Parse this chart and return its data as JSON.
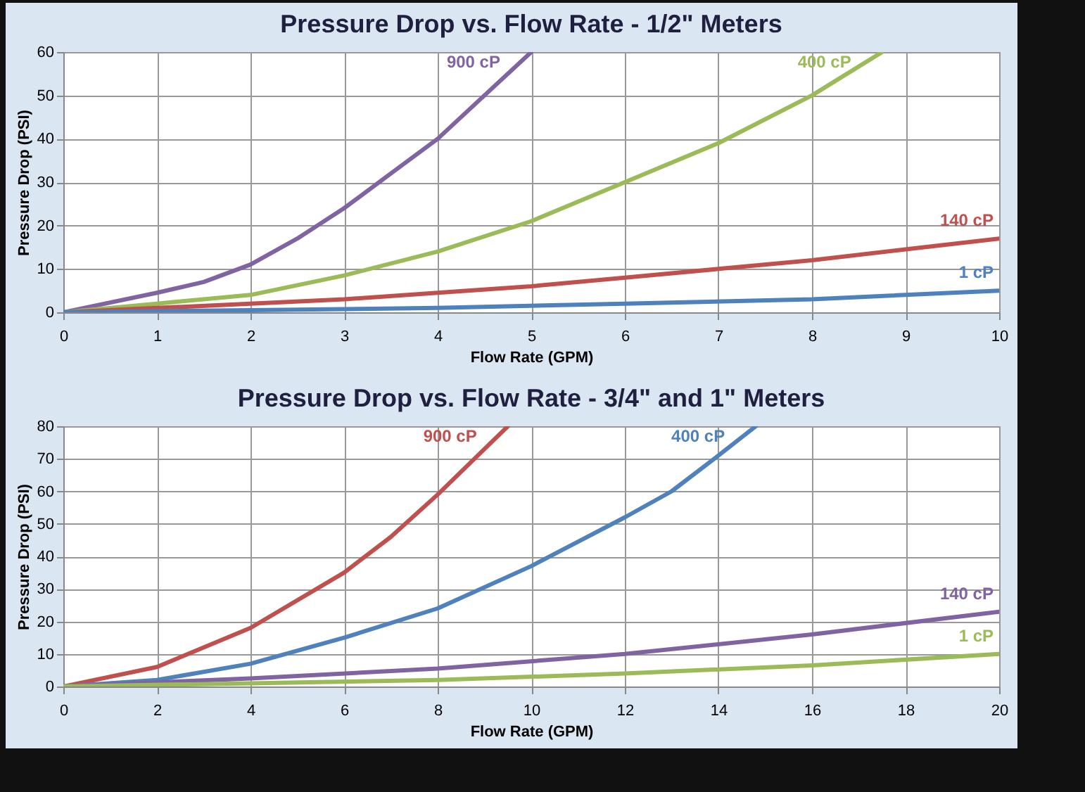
{
  "chart_data": [
    {
      "type": "line",
      "title": "Pressure Drop  vs. Flow Rate - 1/2\" Meters",
      "xlabel": "Flow Rate (GPM)",
      "ylabel": "Pressure Drop (PSI)",
      "xlim": [
        0,
        10
      ],
      "ylim": [
        0,
        60
      ],
      "xticks": [
        0,
        1,
        2,
        3,
        4,
        5,
        6,
        7,
        8,
        9,
        10
      ],
      "yticks": [
        0,
        10,
        20,
        30,
        40,
        50,
        60
      ],
      "grid": true,
      "series": [
        {
          "name": "900 cP",
          "color": "#8064a2",
          "x": [
            0,
            1,
            1.5,
            2,
            2.5,
            3,
            3.5,
            4,
            4.5,
            5
          ],
          "values": [
            0,
            4.5,
            7,
            11,
            17,
            24,
            32,
            40,
            50,
            60
          ]
        },
        {
          "name": "400 cP",
          "color": "#9bbb59",
          "x": [
            0,
            1,
            2,
            3,
            4,
            5,
            6,
            7,
            8,
            8.75
          ],
          "values": [
            0,
            2,
            4,
            8.5,
            14,
            21,
            30,
            39,
            50,
            60
          ]
        },
        {
          "name": "140 cP",
          "color": "#c0504d",
          "x": [
            0,
            1,
            2,
            3,
            4,
            5,
            6,
            7,
            8,
            9,
            10
          ],
          "values": [
            0,
            1,
            2,
            3,
            4.5,
            6,
            8,
            10,
            12,
            14.5,
            17
          ]
        },
        {
          "name": "1 cP",
          "color": "#4f81bd",
          "x": [
            0,
            2,
            4,
            6,
            8,
            10
          ],
          "values": [
            0,
            0.5,
            1,
            2,
            3,
            5
          ]
        }
      ]
    },
    {
      "type": "line",
      "title": "Pressure Drop vs. Flow Rate - 3/4\" and 1\" Meters",
      "xlabel": "Flow Rate (GPM)",
      "ylabel": "Pressure Drop (PSI)",
      "xlim": [
        0,
        20
      ],
      "ylim": [
        0,
        80
      ],
      "xticks": [
        0,
        2,
        4,
        6,
        8,
        10,
        12,
        14,
        16,
        18,
        20
      ],
      "yticks": [
        0,
        10,
        20,
        30,
        40,
        50,
        60,
        70,
        80
      ],
      "grid": true,
      "series": [
        {
          "name": "900 cP",
          "color": "#c0504d",
          "x": [
            0,
            2,
            4,
            6,
            7,
            8,
            9,
            9.5
          ],
          "values": [
            0,
            6,
            18,
            35,
            46,
            59,
            73,
            80
          ]
        },
        {
          "name": "400 cP",
          "color": "#4f81bd",
          "x": [
            0,
            2,
            4,
            6,
            8,
            10,
            12,
            13,
            14,
            14.8
          ],
          "values": [
            0,
            2,
            7,
            15,
            24,
            37,
            52,
            60,
            71,
            80
          ]
        },
        {
          "name": "140 cP",
          "color": "#8064a2",
          "x": [
            0,
            4,
            8,
            12,
            16,
            20
          ],
          "values": [
            0,
            2.5,
            5.5,
            10,
            16,
            23
          ]
        },
        {
          "name": "1 cP",
          "color": "#9bbb59",
          "x": [
            0,
            4,
            8,
            12,
            16,
            20
          ],
          "values": [
            0,
            1,
            2,
            4,
            6.5,
            10
          ]
        }
      ]
    }
  ]
}
